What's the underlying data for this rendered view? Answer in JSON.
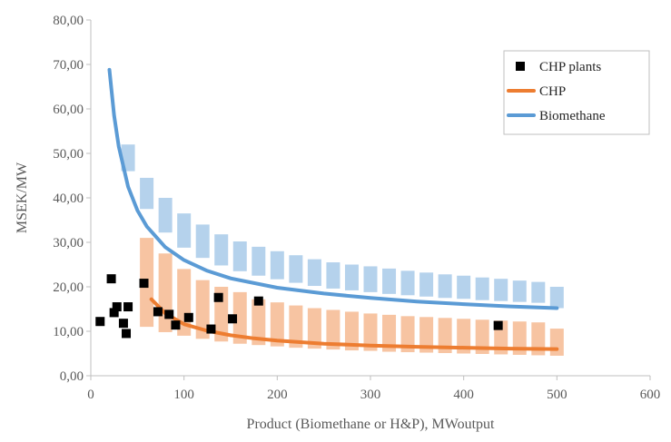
{
  "chart_data": {
    "type": "scatter",
    "title": "",
    "xlabel": "Product (Biomethane or H&P), MWoutput",
    "ylabel": "MSEK/MW",
    "xlim": [
      0,
      600
    ],
    "ylim": [
      0,
      80
    ],
    "x_ticks": [
      0,
      100,
      200,
      300,
      400,
      500,
      600
    ],
    "x_tick_labels": [
      "0",
      "100",
      "200",
      "300",
      "400",
      "500",
      "600"
    ],
    "y_ticks": [
      0,
      10,
      20,
      30,
      40,
      50,
      60,
      70,
      80
    ],
    "y_tick_labels": [
      "0,00",
      "10,00",
      "20,00",
      "30,00",
      "40,00",
      "50,00",
      "60,00",
      "70,00",
      "80,00"
    ],
    "grid": false,
    "legend_position": "top-right",
    "series": [
      {
        "name": "CHP plants",
        "kind": "markers",
        "color": "#000000",
        "points": [
          [
            10,
            12.2
          ],
          [
            22,
            21.8
          ],
          [
            25,
            14.2
          ],
          [
            28,
            15.5
          ],
          [
            35,
            11.8
          ],
          [
            38,
            9.5
          ],
          [
            40,
            15.5
          ],
          [
            57,
            20.8
          ],
          [
            72,
            14.4
          ],
          [
            84,
            13.8
          ],
          [
            91,
            11.4
          ],
          [
            105,
            13.1
          ],
          [
            129,
            10.5
          ],
          [
            137,
            17.6
          ],
          [
            152,
            12.8
          ],
          [
            180,
            16.8
          ],
          [
            437,
            11.3
          ]
        ]
      },
      {
        "name": "CHP",
        "kind": "line",
        "color": "#ED7D31",
        "x": [
          65,
          80,
          100,
          125,
          150,
          175,
          200,
          250,
          300,
          350,
          400,
          450,
          500
        ],
        "y": [
          17.2,
          14.0,
          11.6,
          10.1,
          9.1,
          8.4,
          7.9,
          7.2,
          6.8,
          6.5,
          6.3,
          6.1,
          6.0
        ]
      },
      {
        "name": "Biomethane",
        "kind": "line",
        "color": "#5B9BD5",
        "x": [
          20,
          25,
          30,
          40,
          50,
          60,
          80,
          100,
          125,
          150,
          200,
          250,
          300,
          350,
          400,
          450,
          500
        ],
        "y": [
          68.8,
          58.5,
          51.5,
          42.5,
          37.2,
          33.6,
          28.9,
          26.0,
          23.6,
          21.9,
          19.8,
          18.5,
          17.5,
          16.7,
          16.1,
          15.6,
          15.2
        ]
      },
      {
        "kind": "range_band",
        "color": "#5B9BD5",
        "x": [
          40,
          60,
          80,
          100,
          120,
          140,
          160,
          180,
          200,
          220,
          240,
          260,
          280,
          300,
          320,
          340,
          360,
          380,
          400,
          420,
          440,
          460,
          480,
          500
        ],
        "low": [
          46.0,
          37.5,
          32.2,
          28.8,
          26.5,
          24.8,
          23.5,
          22.5,
          21.7,
          20.9,
          20.2,
          19.6,
          19.2,
          18.8,
          18.4,
          18.1,
          17.8,
          17.5,
          17.3,
          17.0,
          16.8,
          16.6,
          16.4,
          15.2
        ],
        "high": [
          52.0,
          44.5,
          40.0,
          36.5,
          34.0,
          31.8,
          30.2,
          29.0,
          28.0,
          27.1,
          26.2,
          25.5,
          25.0,
          24.6,
          24.1,
          23.6,
          23.2,
          22.8,
          22.5,
          22.1,
          21.8,
          21.4,
          21.1,
          20.0
        ]
      },
      {
        "kind": "range_band",
        "color": "#ED7D31",
        "x": [
          60,
          80,
          100,
          120,
          140,
          160,
          180,
          200,
          220,
          240,
          260,
          280,
          300,
          320,
          340,
          360,
          380,
          400,
          420,
          440,
          460,
          480,
          500
        ],
        "low": [
          11.0,
          9.8,
          9.0,
          8.3,
          7.7,
          7.2,
          6.9,
          6.6,
          6.3,
          6.1,
          5.9,
          5.7,
          5.6,
          5.4,
          5.3,
          5.2,
          5.1,
          5.0,
          4.9,
          4.8,
          4.7,
          4.6,
          4.5
        ],
        "high": [
          31.0,
          27.5,
          24.0,
          21.5,
          20.0,
          18.8,
          17.2,
          16.5,
          15.8,
          15.2,
          14.8,
          14.4,
          14.0,
          13.7,
          13.4,
          13.2,
          13.0,
          12.8,
          12.6,
          12.4,
          12.2,
          12.0,
          10.6
        ]
      }
    ]
  }
}
